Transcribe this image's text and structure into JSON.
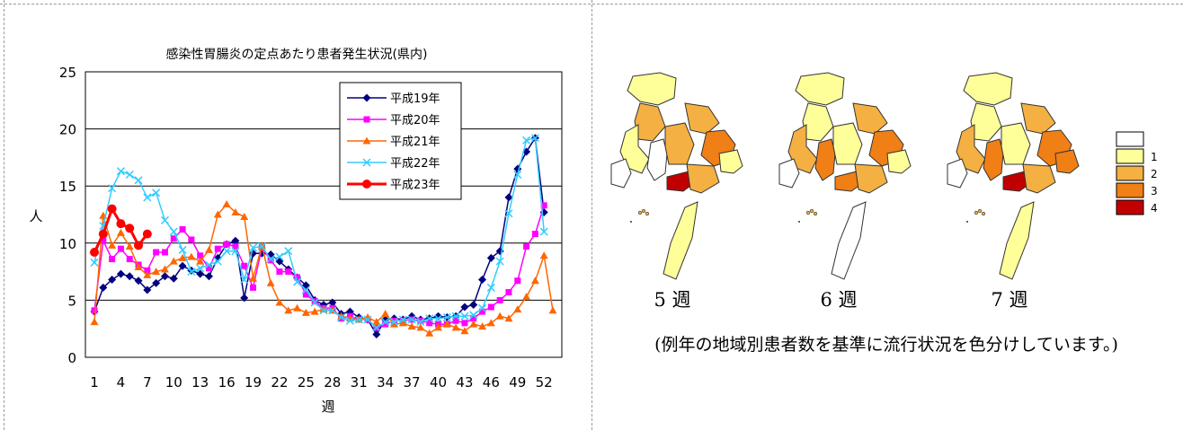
{
  "chart_data": {
    "type": "line",
    "title": "感染性胃腸炎の定点あたり患者発生状況(県内)",
    "xlabel": "週",
    "ylabel": "人",
    "ylim": [
      0,
      25
    ],
    "yticks": [
      "0",
      "5",
      "10",
      "15",
      "20",
      "25"
    ],
    "xticks": [
      "1",
      "4",
      "7",
      "10",
      "13",
      "16",
      "19",
      "22",
      "25",
      "28",
      "31",
      "34",
      "37",
      "40",
      "43",
      "46",
      "49",
      "52"
    ],
    "grid": "horizontal",
    "legend_position": "top-center",
    "series": [
      {
        "name": "平成19年",
        "color": "#000080",
        "marker": "diamond",
        "values": [
          4.0,
          6.1,
          6.8,
          7.3,
          7.1,
          6.7,
          5.9,
          6.5,
          7.1,
          6.9,
          8.0,
          7.6,
          7.3,
          7.1,
          8.7,
          9.9,
          10.2,
          5.2,
          9.1,
          9.1,
          9.0,
          8.4,
          7.7,
          7.0,
          6.3,
          5.0,
          4.6,
          4.8,
          3.8,
          4.0,
          3.5,
          3.3,
          2.0,
          3.3,
          3.4,
          3.3,
          3.6,
          3.3,
          3.4,
          3.6,
          3.5,
          3.6,
          4.4,
          4.6,
          6.8,
          8.7,
          9.3,
          14.0,
          16.5,
          18.0,
          19.2,
          12.7
        ]
      },
      {
        "name": "平成20年",
        "color": "#ff00ff",
        "marker": "square",
        "values": [
          4.1,
          10.2,
          8.6,
          9.5,
          8.6,
          8.1,
          7.6,
          9.2,
          9.2,
          10.4,
          11.2,
          10.3,
          8.9,
          7.8,
          9.5,
          9.9,
          9.7,
          8.0,
          6.1,
          9.6,
          8.5,
          7.5,
          7.5,
          7.0,
          5.5,
          4.9,
          4.3,
          4.3,
          3.4,
          3.6,
          3.3,
          3.3,
          2.6,
          2.9,
          3.2,
          3.2,
          3.3,
          3.2,
          3.0,
          2.9,
          2.9,
          3.2,
          3.0,
          3.4,
          4.0,
          4.4,
          5.0,
          5.7,
          6.7,
          9.7,
          10.8,
          13.3
        ]
      },
      {
        "name": "平成21年",
        "color": "#ff6600",
        "marker": "triangle",
        "values": [
          3.1,
          12.4,
          9.8,
          10.9,
          9.7,
          7.9,
          7.2,
          7.5,
          7.7,
          8.4,
          8.7,
          8.8,
          8.4,
          9.4,
          12.5,
          13.4,
          12.7,
          12.3,
          6.9,
          9.8,
          6.5,
          4.8,
          4.1,
          4.3,
          3.9,
          4.0,
          4.2,
          4.1,
          3.6,
          3.4,
          3.3,
          3.5,
          3.1,
          3.8,
          2.9,
          3.0,
          2.7,
          2.6,
          2.1,
          2.6,
          2.9,
          2.6,
          2.3,
          2.9,
          2.7,
          3.0,
          3.6,
          3.4,
          4.2,
          5.3,
          6.7,
          8.9,
          4.1
        ]
      },
      {
        "name": "平成22年",
        "color": "#33ccff",
        "marker": "x",
        "values": [
          8.3,
          11.5,
          14.8,
          16.3,
          16.0,
          15.5,
          14.0,
          14.4,
          12.0,
          11.0,
          9.4,
          7.5,
          7.8,
          8.1,
          8.4,
          9.3,
          9.3,
          6.8,
          9.6,
          9.7,
          8.6,
          8.8,
          9.3,
          6.6,
          5.9,
          4.8,
          4.1,
          4.1,
          3.5,
          3.2,
          3.3,
          3.3,
          2.6,
          3.1,
          3.1,
          3.3,
          3.3,
          3.1,
          3.4,
          3.4,
          3.5,
          3.6,
          3.6,
          3.7,
          4.3,
          6.1,
          8.4,
          12.6,
          16.0,
          19.0,
          19.2,
          11.0
        ]
      },
      {
        "name": "平成23年",
        "color": "#ff0000",
        "marker": "circle",
        "values": [
          9.2,
          10.8,
          13.0,
          11.7,
          11.3,
          9.8,
          10.8
        ]
      }
    ]
  },
  "maps": {
    "panels": [
      {
        "label": "5 週"
      },
      {
        "label": "6 週"
      },
      {
        "label": "7 週"
      }
    ],
    "legend": [
      {
        "label": "",
        "color": "#ffffff"
      },
      {
        "label": "1",
        "color": "#ffff99"
      },
      {
        "label": "2",
        "color": "#f4b042"
      },
      {
        "label": "3",
        "color": "#f07f16"
      },
      {
        "label": "4",
        "color": "#c00000"
      }
    ],
    "caption": "(例年の地域別患者数を基準に流行状況を色分けしています。)"
  }
}
